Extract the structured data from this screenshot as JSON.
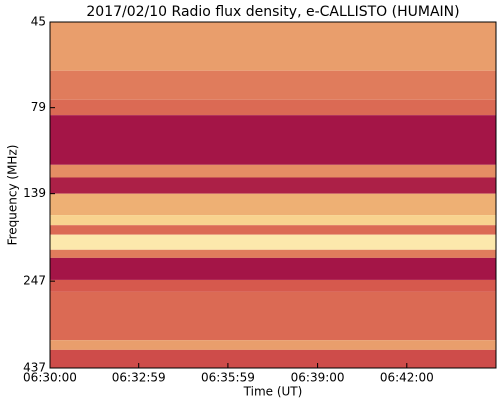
{
  "chart_data": {
    "type": "spectrogram",
    "title": "2017/02/10  Radio flux density, e-CALLISTO (HUMAIN)",
    "x_label": "Time (UT)",
    "y_label": "Frequency (MHz)",
    "xlim": [
      0,
      900
    ],
    "xticks": [
      {
        "value": 0,
        "label": "06:30:00"
      },
      {
        "value": 179,
        "label": "06:32:59"
      },
      {
        "value": 359,
        "label": "06:35:59"
      },
      {
        "value": 540,
        "label": "06:39:00"
      },
      {
        "value": 720,
        "label": "06:42:00"
      }
    ],
    "ylim": [
      437,
      45
    ],
    "log_y": true,
    "yticks": [
      45,
      79,
      139,
      247,
      437
    ],
    "band_edges": [
      45,
      62,
      75,
      83,
      115,
      125,
      139,
      160,
      171,
      182,
      201,
      212,
      245,
      265,
      364,
      388,
      437
    ],
    "intensity": [
      0.55,
      0.45,
      0.4,
      0.05,
      0.5,
      0.1,
      0.6,
      0.75,
      0.4,
      0.9,
      0.45,
      0.05,
      0.35,
      0.4,
      0.55,
      0.3
    ],
    "colormap": [
      "#9b0a46",
      "#d4534a",
      "#f5c77e",
      "#fff6c0"
    ]
  }
}
